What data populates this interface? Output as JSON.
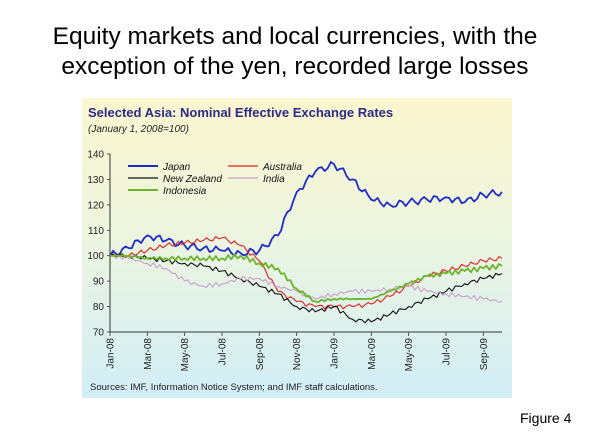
{
  "slide": {
    "title_line1": "Equity markets and local currencies, with the",
    "title_line2": "exception of the yen, recorded large losses",
    "figure_label": "Figure 4"
  },
  "chart_data": {
    "type": "line",
    "title": "Selected Asia: Nominal Effective Exchange Rates",
    "subtitle": "(January 1, 2008=100)",
    "source": "Sources: IMF, Information Notice System; and IMF staff calculations.",
    "xlabel": "",
    "ylabel": "",
    "ylim": [
      70,
      140
    ],
    "yticks": [
      70,
      80,
      90,
      100,
      110,
      120,
      130,
      140
    ],
    "xticks": [
      "Jan-08",
      "Mar-08",
      "May-08",
      "Jul-08",
      "Sep-08",
      "Nov-08",
      "Jan-09",
      "Mar-09",
      "May-09",
      "Jul-09",
      "Sep-09"
    ],
    "grid": false,
    "legend_placement": "top-left",
    "x": [
      "Jan-08",
      "Feb-08",
      "Mar-08",
      "Apr-08",
      "May-08",
      "Jun-08",
      "Jul-08",
      "Aug-08",
      "Sep-08",
      "Oct-08",
      "Nov-08",
      "Dec-08",
      "Jan-09",
      "Feb-09",
      "Mar-09",
      "Apr-09",
      "May-09",
      "Jun-09",
      "Jul-09",
      "Aug-09",
      "Sep-09",
      "Oct-09"
    ],
    "series": [
      {
        "name": "Japan",
        "color": "#1f2dc8",
        "values": [
          100,
          103,
          108,
          106,
          104,
          103,
          102,
          101,
          102,
          108,
          125,
          133,
          136,
          130,
          122,
          120,
          121,
          122,
          123,
          121,
          124,
          125
        ]
      },
      {
        "name": "Australia",
        "color": "#e02020",
        "values": [
          100,
          100,
          102,
          104,
          105,
          106,
          107,
          104,
          98,
          86,
          82,
          80,
          80,
          80,
          81,
          84,
          88,
          92,
          94,
          96,
          98,
          99
        ]
      },
      {
        "name": "New Zealand",
        "color": "#111111",
        "values": [
          100,
          100,
          99,
          98,
          97,
          96,
          94,
          91,
          88,
          85,
          80,
          78,
          80,
          75,
          74,
          77,
          80,
          83,
          86,
          89,
          91,
          93
        ]
      },
      {
        "name": "India",
        "color": "#c8a0c8",
        "values": [
          100,
          99,
          97,
          95,
          90,
          88,
          89,
          91,
          91,
          88,
          86,
          83,
          85,
          86,
          86,
          87,
          88,
          86,
          85,
          84,
          83,
          82
        ]
      },
      {
        "name": "Indonesia",
        "color": "#6ab52a",
        "values": [
          100,
          100,
          99,
          99,
          99,
          99,
          99,
          100,
          97,
          95,
          87,
          82,
          83,
          83,
          83,
          86,
          89,
          92,
          93,
          94,
          95,
          96
        ]
      }
    ]
  }
}
